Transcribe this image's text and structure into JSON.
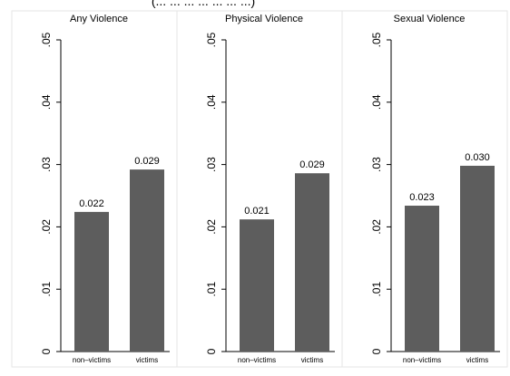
{
  "page_title": "(... ... ... ... ... ... ...)",
  "chart_data": [
    {
      "type": "bar",
      "title": "Any Violence",
      "categories": [
        "non–victims",
        "victims"
      ],
      "values": [
        0.0224,
        0.0292
      ],
      "value_labels": [
        "0.022",
        "0.029"
      ],
      "ylim": [
        0,
        0.05
      ],
      "yticks": [
        0,
        0.01,
        0.02,
        0.03,
        0.04,
        0.05
      ],
      "ytick_labels": [
        "0",
        ".01",
        ".02",
        ".03",
        ".04",
        ".05"
      ],
      "grid": false,
      "bar_color": "#5d5d5d"
    },
    {
      "type": "bar",
      "title": "Physical Violence",
      "categories": [
        "non–victims",
        "victims"
      ],
      "values": [
        0.0212,
        0.0286
      ],
      "value_labels": [
        "0.021",
        "0.029"
      ],
      "ylim": [
        0,
        0.05
      ],
      "yticks": [
        0,
        0.01,
        0.02,
        0.03,
        0.04,
        0.05
      ],
      "ytick_labels": [
        "0",
        ".01",
        ".02",
        ".03",
        ".04",
        ".05"
      ],
      "grid": false,
      "bar_color": "#5d5d5d"
    },
    {
      "type": "bar",
      "title": "Sexual Violence",
      "categories": [
        "non–victims",
        "victims"
      ],
      "values": [
        0.0234,
        0.0298
      ],
      "value_labels": [
        "0.023",
        "0.030"
      ],
      "ylim": [
        0,
        0.05
      ],
      "yticks": [
        0,
        0.01,
        0.02,
        0.03,
        0.04,
        0.05
      ],
      "ytick_labels": [
        "0",
        ".01",
        ".02",
        ".03",
        ".04",
        ".05"
      ],
      "grid": false,
      "bar_color": "#5d5d5d"
    }
  ]
}
